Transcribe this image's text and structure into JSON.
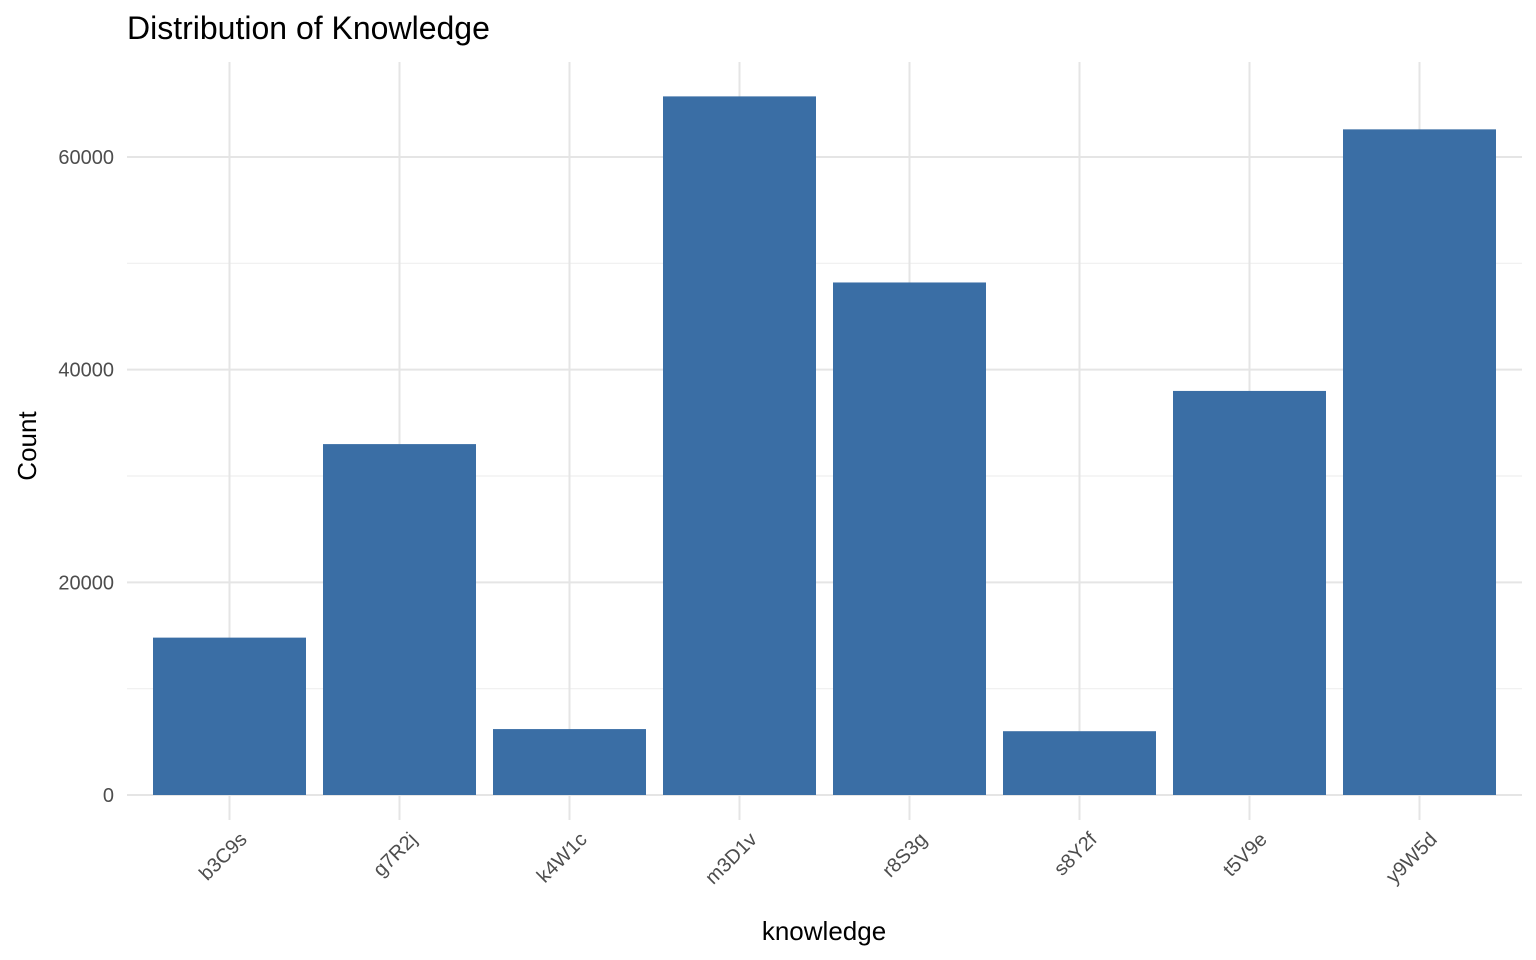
{
  "chart_data": {
    "type": "bar",
    "title": "Distribution of Knowledge",
    "xlabel": "knowledge",
    "ylabel": "Count",
    "categories": [
      "b3C9s",
      "g7R2j",
      "k4W1c",
      "m3D1v",
      "r8S3g",
      "s8Y2f",
      "t5V9e",
      "y9W5d"
    ],
    "values": [
      14800,
      33000,
      6200,
      65700,
      48200,
      6000,
      38000,
      62600
    ],
    "ylim": [
      0,
      69000
    ],
    "yticks": [
      0,
      20000,
      40000,
      60000
    ],
    "ytick_labels": [
      "0",
      "20000",
      "40000",
      "60000"
    ],
    "grid": true,
    "legend": "none",
    "bar_color": "#3a6ea5"
  }
}
